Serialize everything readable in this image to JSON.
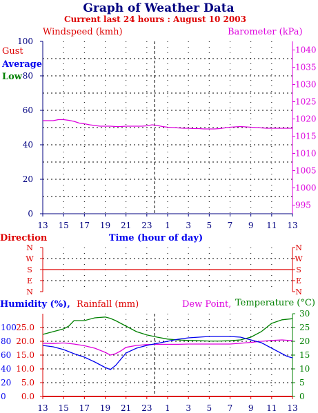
{
  "header": {
    "title": "Graph of Weather Data",
    "subtitle": "Current last 24 hours : August 10 2003"
  },
  "colors": {
    "navy": "#000080",
    "red": "#dd0000",
    "blue": "#0000ee",
    "green": "#008000",
    "magenta": "#dd00dd",
    "grid": "#000000"
  },
  "chart_data": [
    {
      "type": "line",
      "name": "wind-barometer",
      "left_axis_label": "Windspeed (kmh)",
      "right_axis_label": "Barometer (kPa)",
      "legend": [
        "Gust",
        "Average",
        "Low"
      ],
      "x_label": "Time (hour of day)",
      "x_ticks": [
        "13",
        "15",
        "17",
        "19",
        "21",
        "23",
        "1",
        "3",
        "5",
        "7",
        "9",
        "11",
        "13"
      ],
      "x_range_hours": [
        0,
        24
      ],
      "current_time_marker": 10.75,
      "left_ylim": [
        0,
        100
      ],
      "left_ticks": [
        "0",
        "20",
        "40",
        "60",
        "80",
        "100"
      ],
      "right_ylim": [
        992.5,
        1042.5
      ],
      "right_ticks": [
        "995",
        "1000",
        "1005",
        "1010",
        "1015",
        "1020",
        "1025",
        "1030",
        "1035",
        "1040"
      ],
      "series": [
        {
          "name": "Barometer",
          "axis": "right",
          "color": "#dd00dd",
          "x": [
            0,
            0.5,
            1,
            1.5,
            2,
            2.5,
            3,
            3.5,
            4,
            4.5,
            5,
            5.5,
            6,
            6.5,
            7,
            7.5,
            8,
            8.5,
            9,
            9.5,
            10,
            10.5,
            11,
            11.5,
            12,
            12.5,
            13,
            13.5,
            14,
            14.5,
            15,
            15.5,
            16,
            16.5,
            17,
            17.5,
            18,
            18.5,
            19,
            19.5,
            20,
            20.5,
            21,
            21.5,
            22,
            22.5,
            23,
            23.5,
            24
          ],
          "y": [
            1019.5,
            1019.5,
            1019.5,
            1019.8,
            1019.8,
            1019.6,
            1019.3,
            1018.8,
            1018.6,
            1018.3,
            1018.1,
            1017.9,
            1017.9,
            1017.9,
            1017.8,
            1017.8,
            1017.9,
            1017.9,
            1017.9,
            1017.9,
            1018.0,
            1018.3,
            1018.1,
            1017.8,
            1017.6,
            1017.5,
            1017.4,
            1017.3,
            1017.3,
            1017.2,
            1017.2,
            1017.1,
            1017.1,
            1017.1,
            1017.2,
            1017.4,
            1017.6,
            1017.7,
            1017.8,
            1017.7,
            1017.6,
            1017.5,
            1017.4,
            1017.3,
            1017.3,
            1017.3,
            1017.3,
            1017.3,
            1017.3
          ]
        }
      ]
    },
    {
      "type": "line",
      "name": "direction",
      "axis_label": "Direction",
      "categories": [
        "N",
        "W",
        "S",
        "E",
        "N"
      ],
      "x_range_hours": [
        0,
        24
      ],
      "series": [
        {
          "name": "Direction",
          "color": "#dd0000",
          "x": [
            0,
            24
          ],
          "y": [
            "S",
            "S"
          ]
        }
      ]
    },
    {
      "type": "line",
      "name": "humidity-rain-temp",
      "labels": {
        "humidity": "Humidity (%),",
        "rainfall": "Rainfall (mm)",
        "dewpoint": "Dew Point,",
        "temperature": "Temperature (°C)"
      },
      "x_ticks": [
        "13",
        "15",
        "17",
        "19",
        "21",
        "23",
        "1",
        "3",
        "5",
        "7",
        "9",
        "11",
        "13"
      ],
      "x_range_hours": [
        0,
        24
      ],
      "current_time_marker": 10.75,
      "humidity_ylim": [
        0,
        120
      ],
      "humidity_ticks": [
        "0",
        "20",
        "40",
        "60",
        "80",
        "100"
      ],
      "rainfall_ylim": [
        0,
        30
      ],
      "rainfall_ticks": [
        "0.0",
        "5.0",
        "10.0",
        "15.0",
        "20.0",
        "25.0"
      ],
      "temperature_ylim": [
        0,
        30
      ],
      "temperature_ticks": [
        "0",
        "5",
        "10",
        "15",
        "20",
        "25",
        "30"
      ],
      "series": [
        {
          "name": "Temperature",
          "axis": "temperature",
          "color": "#008000",
          "x": [
            0,
            1,
            2,
            2.5,
            3,
            4,
            5,
            6,
            6.5,
            7,
            8,
            9,
            10,
            11,
            12,
            13,
            14,
            15,
            16,
            17,
            18,
            19,
            20,
            21,
            22,
            23,
            24
          ],
          "y": [
            22.5,
            23.5,
            24.5,
            25.5,
            27.5,
            27.5,
            28.5,
            28.8,
            28.3,
            27.5,
            25.5,
            23.5,
            22.3,
            21.5,
            20.8,
            20.5,
            20.3,
            20.2,
            20.1,
            20.1,
            20.2,
            20.5,
            21.5,
            23.5,
            26.5,
            27.8,
            28.2
          ]
        },
        {
          "name": "Dew Point",
          "axis": "temperature",
          "color": "#dd00dd",
          "x": [
            0,
            1,
            2,
            3,
            4,
            5,
            6,
            6.5,
            7,
            7.5,
            8,
            9,
            10,
            11,
            12,
            13,
            14,
            15,
            16,
            17,
            18,
            19,
            20,
            21,
            22,
            23,
            24
          ],
          "y": [
            19.3,
            19.2,
            19.4,
            19.0,
            18.4,
            17.5,
            16.0,
            15.0,
            15.5,
            16.5,
            17.8,
            18.5,
            18.8,
            18.9,
            18.9,
            18.9,
            19.0,
            19.0,
            19.0,
            19.0,
            19.0,
            19.3,
            19.6,
            20.0,
            20.3,
            20.5,
            20.2
          ]
        },
        {
          "name": "Humidity",
          "axis": "humidity",
          "color": "#0000ee",
          "x": [
            0,
            1,
            2,
            3,
            4,
            5,
            6,
            6.5,
            7,
            8,
            9,
            10,
            11,
            12,
            13,
            14,
            15,
            16,
            17,
            18,
            19,
            19.5,
            20,
            21,
            22,
            23,
            23.5,
            24
          ],
          "y": [
            74,
            72,
            68,
            62,
            57,
            50,
            42,
            39,
            45,
            63,
            70,
            74,
            77,
            80,
            83,
            85,
            86,
            87,
            87,
            87,
            86,
            84,
            82,
            78,
            70,
            62,
            58,
            56
          ]
        },
        {
          "name": "Rainfall",
          "axis": "rainfall",
          "color": "#dd0000",
          "x": [
            0,
            24
          ],
          "y": [
            0.0,
            0.0
          ]
        }
      ]
    }
  ]
}
